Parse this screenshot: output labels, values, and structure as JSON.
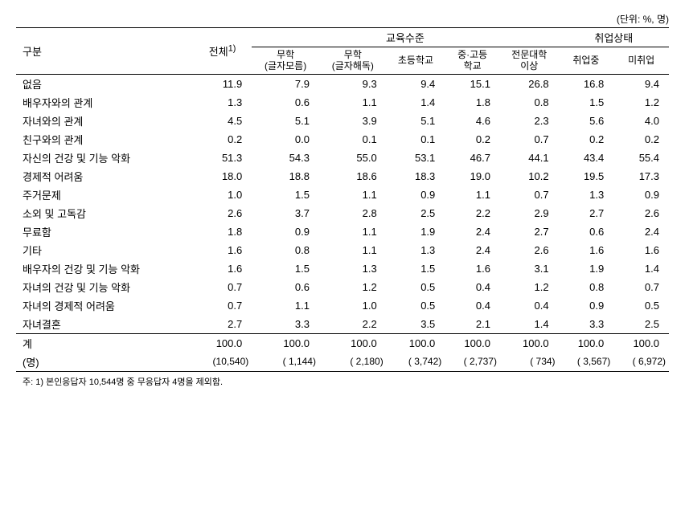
{
  "unit_label": "(단위: %, 명)",
  "headers": {
    "category": "구분",
    "total": "전체",
    "total_sup": "1)",
    "edu_group": "교육수준",
    "emp_group": "취업상태",
    "edu1_line1": "무학",
    "edu1_line2": "(글자모름)",
    "edu2_line1": "무학",
    "edu2_line2": "(글자해독)",
    "edu3": "초등학교",
    "edu4_line1": "중·고등",
    "edu4_line2": "학교",
    "edu5_line1": "전문대학",
    "edu5_line2": "이상",
    "emp1": "취업중",
    "emp2": "미취업"
  },
  "rows": [
    {
      "label": "없음",
      "vals": [
        "11.9",
        "7.9",
        "9.3",
        "9.4",
        "15.1",
        "26.8",
        "16.8",
        "9.4"
      ]
    },
    {
      "label": "배우자와의 관계",
      "vals": [
        "1.3",
        "0.6",
        "1.1",
        "1.4",
        "1.8",
        "0.8",
        "1.5",
        "1.2"
      ]
    },
    {
      "label": "자녀와의 관계",
      "vals": [
        "4.5",
        "5.1",
        "3.9",
        "5.1",
        "4.6",
        "2.3",
        "5.6",
        "4.0"
      ]
    },
    {
      "label": "친구와의 관계",
      "vals": [
        "0.2",
        "0.0",
        "0.1",
        "0.1",
        "0.2",
        "0.7",
        "0.2",
        "0.2"
      ]
    },
    {
      "label": "자신의 건강 및 기능 악화",
      "vals": [
        "51.3",
        "54.3",
        "55.0",
        "53.1",
        "46.7",
        "44.1",
        "43.4",
        "55.4"
      ]
    },
    {
      "label": "경제적 어려움",
      "vals": [
        "18.0",
        "18.8",
        "18.6",
        "18.3",
        "19.0",
        "10.2",
        "19.5",
        "17.3"
      ]
    },
    {
      "label": "주거문제",
      "vals": [
        "1.0",
        "1.5",
        "1.1",
        "0.9",
        "1.1",
        "0.7",
        "1.3",
        "0.9"
      ]
    },
    {
      "label": "소외 및 고독감",
      "vals": [
        "2.6",
        "3.7",
        "2.8",
        "2.5",
        "2.2",
        "2.9",
        "2.7",
        "2.6"
      ]
    },
    {
      "label": "무료함",
      "vals": [
        "1.8",
        "0.9",
        "1.1",
        "1.9",
        "2.4",
        "2.7",
        "0.6",
        "2.4"
      ]
    },
    {
      "label": "기타",
      "vals": [
        "1.6",
        "0.8",
        "1.1",
        "1.3",
        "2.4",
        "2.6",
        "1.6",
        "1.6"
      ]
    },
    {
      "label": "배우자의 건강 및 기능 악화",
      "vals": [
        "1.6",
        "1.5",
        "1.3",
        "1.5",
        "1.6",
        "3.1",
        "1.9",
        "1.4"
      ]
    },
    {
      "label": "자녀의 건강 및 기능 악화",
      "vals": [
        "0.7",
        "0.6",
        "1.2",
        "0.5",
        "0.4",
        "1.2",
        "0.8",
        "0.7"
      ]
    },
    {
      "label": "자녀의 경제적 어려움",
      "vals": [
        "0.7",
        "1.1",
        "1.0",
        "0.5",
        "0.4",
        "0.4",
        "0.9",
        "0.5"
      ]
    },
    {
      "label": "자녀결혼",
      "vals": [
        "2.7",
        "3.3",
        "2.2",
        "3.5",
        "2.1",
        "1.4",
        "3.3",
        "2.5"
      ]
    }
  ],
  "totals": {
    "label": "계",
    "vals": [
      "100.0",
      "100.0",
      "100.0",
      "100.0",
      "100.0",
      "100.0",
      "100.0",
      "100.0"
    ]
  },
  "counts": {
    "label": "(명)",
    "vals": [
      "(10,540)",
      "( 1,144)",
      "( 2,180)",
      "( 3,742)",
      "( 2,737)",
      "(   734)",
      "( 3,567)",
      "( 6,972)"
    ]
  },
  "footnote": "주: 1) 본인응답자 10,544명 중 무응답자 4명을 제외함."
}
